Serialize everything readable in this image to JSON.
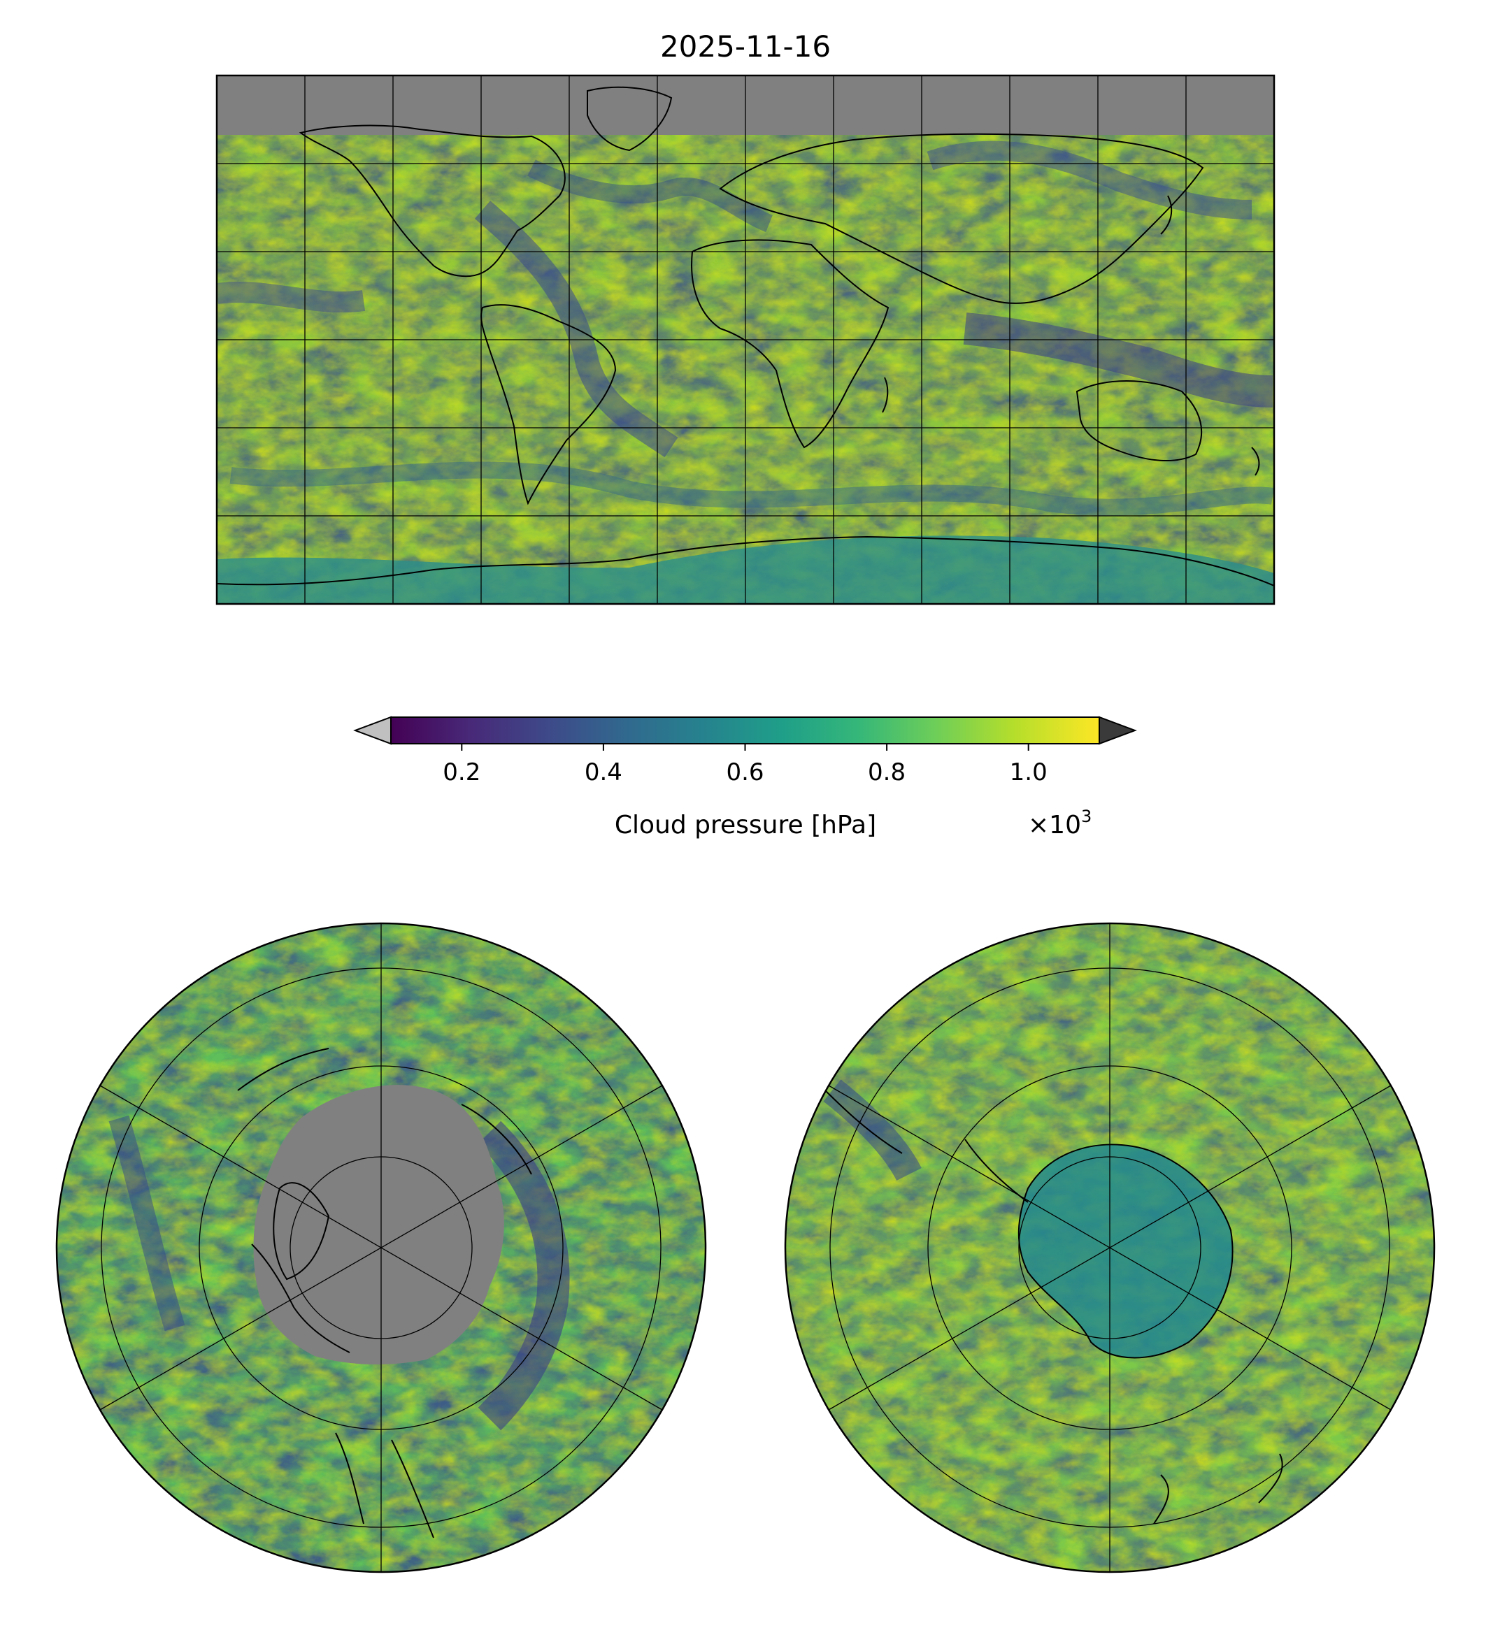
{
  "figure": {
    "title": "2025-11-16"
  },
  "colorbar": {
    "label": "Cloud pressure [hPa]",
    "multiplier_base": "×10",
    "multiplier_exp": "3",
    "ticks": [
      "0.2",
      "0.4",
      "0.6",
      "0.8",
      "1.0"
    ],
    "range_scaled": [
      0.1,
      1.1
    ],
    "extend": "both",
    "colormap": "viridis",
    "colors": {
      "c0": "#440154",
      "c1": "#482878",
      "c2": "#3e4989",
      "c3": "#31688e",
      "c4": "#26828e",
      "c5": "#1f9e89",
      "c6": "#35b779",
      "c7": "#6ece58",
      "c8": "#b5de2b",
      "c9": "#fde725",
      "under": "#c0c0c0",
      "over": "#3a3a3a",
      "no_data": "#808080"
    }
  },
  "panels": [
    {
      "name": "global-map",
      "projection": "plate-carree"
    },
    {
      "name": "north-polar-map",
      "projection": "north-polar-stereographic"
    },
    {
      "name": "south-polar-map",
      "projection": "south-polar-stereographic"
    }
  ]
}
